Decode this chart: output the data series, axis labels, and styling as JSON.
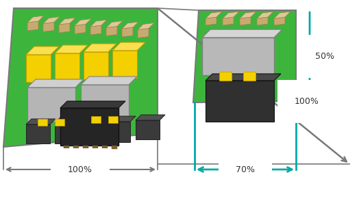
{
  "bg_color": "#ffffff",
  "gray_col": "#787878",
  "teal_col": "#00a8a8",
  "green_col": "#3db53d",
  "green_edge": "#2a8a2a",
  "yellow_col": "#f5d000",
  "yellow_edge": "#c8a800",
  "cap_col": "#c8aa70",
  "chip_dark": "#353535",
  "gray_comp": "#b0b0b0",
  "label_100_left": "100%",
  "label_70": "70%",
  "label_50": "50%",
  "label_100_right": "100%"
}
